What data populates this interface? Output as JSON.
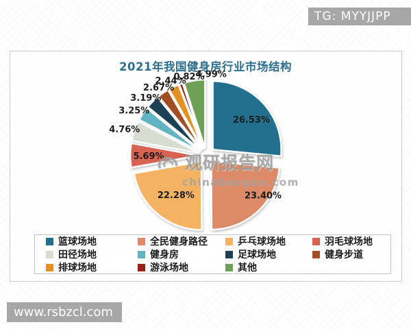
{
  "badges": {
    "tg": "TG: MYYJJPP",
    "site": "www.rsbzcl.com"
  },
  "watermark": {
    "brand": "观研报告网",
    "domain": "chinabaogao.com"
  },
  "chart_data": {
    "type": "pie",
    "title": "2021年我国健身房行业市场结构",
    "categories": [
      "篮球场地",
      "全民健身路径",
      "乒乓球场地",
      "羽毛球场地",
      "田径场地",
      "健身房",
      "足球场地",
      "健身步道",
      "排球场地",
      "游泳场地",
      "其他"
    ],
    "values": [
      26.53,
      23.4,
      22.28,
      5.69,
      4.76,
      3.25,
      3.19,
      2.67,
      2.44,
      0.82,
      4.99
    ],
    "labels": [
      "26.53%",
      "23.40%",
      "22.28%",
      "5.69%",
      "4.76%",
      "3.25%",
      "3.19%",
      "2.67%",
      "2.44%",
      "0.82%",
      "4.99%"
    ],
    "colors": [
      "#20708e",
      "#dc8a67",
      "#f4b264",
      "#d96353",
      "#d8ddd1",
      "#62b4c1",
      "#1d4057",
      "#a24e24",
      "#e39122",
      "#9d1f15",
      "#6ea157"
    ],
    "title_color": "#2e6f8e",
    "legend_position": "bottom",
    "start_angle_deg": 0,
    "direction": "clockwise",
    "exploded": true
  }
}
